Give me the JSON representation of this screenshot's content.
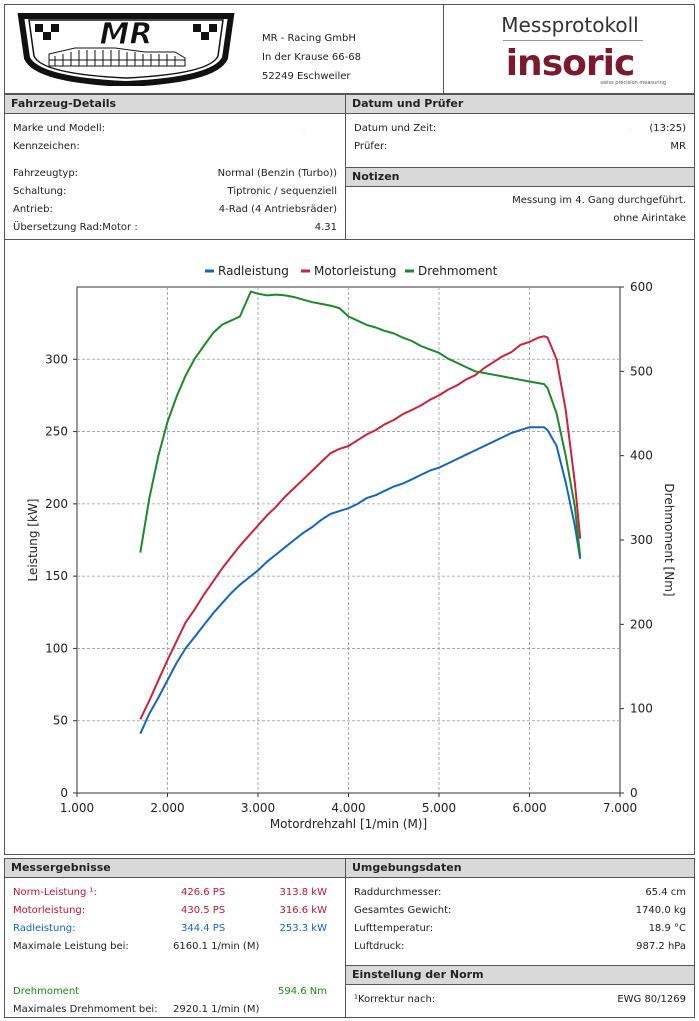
{
  "header": {
    "address_lines": [
      "MR - Racing GmbH",
      "In der Krause 66-68",
      "52249 Eschweiler"
    ],
    "doc_title": "Messprotokoll",
    "brand": "insoric",
    "brand_o": "o",
    "brand_tagline": "swiss precision measuring",
    "logo_text": "MR"
  },
  "vehicle": {
    "title": "Fahrzeug-Details",
    "make_label": "Marke und Modell:",
    "make_value": ".",
    "plate_label": "Kennzeichen:",
    "rows": [
      {
        "label": "Fahrzeugtyp:",
        "value": "Normal (Benzin (Turbo))"
      },
      {
        "label": "Schaltung:",
        "value": "Tiptronic / sequenziell"
      },
      {
        "label": "Antrieb:",
        "value": "4-Rad (4 Antriebsräder)"
      },
      {
        "label": "Übersetzung Rad:Motor :",
        "value": "4.31"
      }
    ]
  },
  "date": {
    "title": "Datum und Prüfer",
    "datetime_label": "Datum und Zeit:",
    "datetime_dot": ".",
    "datetime_value": "(13:25)",
    "tester_label": "Prüfer:",
    "tester_value": "MR"
  },
  "notes": {
    "title": "Notizen",
    "lines": [
      "Messung im 4. Gang durchgeführt.",
      "ohne Airintake"
    ]
  },
  "chart_data": {
    "type": "line",
    "legend": [
      "Radleistung",
      "Motorleistung",
      "Drehmoment"
    ],
    "legend_position": "top",
    "colors": [
      "#1464c8",
      "#d0203a",
      "#1a8a2a"
    ],
    "xlabel": "Motordrehzahl [1/min (M)]",
    "ylabel": "Leistung [kW]",
    "y2label": "Drehmoment [Nm]",
    "xlim": [
      1000,
      7000
    ],
    "ylim": [
      0,
      350
    ],
    "y2lim": [
      0,
      600
    ],
    "xticks": [
      "1.000",
      "2.000",
      "3.000",
      "4.000",
      "5.000",
      "6.000",
      "7.000"
    ],
    "yticks": [
      "0",
      "50",
      "100",
      "150",
      "200",
      "250",
      "300"
    ],
    "y2ticks": [
      "0",
      "100",
      "200",
      "300",
      "400",
      "500",
      "600"
    ],
    "grid": true,
    "series": [
      {
        "name": "Radleistung",
        "axis": "left",
        "x": [
          1700,
          1800,
          1900,
          2000,
          2100,
          2200,
          2300,
          2400,
          2500,
          2600,
          2700,
          2800,
          2900,
          3000,
          3100,
          3200,
          3300,
          3400,
          3500,
          3600,
          3700,
          3800,
          3900,
          4000,
          4100,
          4200,
          4300,
          4400,
          4500,
          4600,
          4700,
          4800,
          4900,
          5000,
          5100,
          5200,
          5300,
          5400,
          5500,
          5600,
          5700,
          5800,
          5900,
          6000,
          6100,
          6160,
          6200,
          6300,
          6400,
          6500,
          6560
        ],
        "values": [
          41,
          55,
          66,
          78,
          90,
          100,
          108,
          116,
          124,
          131,
          138,
          144,
          149,
          154,
          160,
          165,
          170,
          175,
          180,
          184,
          189,
          193,
          195,
          197,
          200,
          204,
          206,
          209,
          212,
          214,
          217,
          220,
          223,
          225,
          228,
          231,
          234,
          237,
          240,
          243,
          246,
          249,
          251,
          253,
          253,
          253,
          251,
          240,
          215,
          185,
          162
        ]
      },
      {
        "name": "Motorleistung",
        "axis": "left",
        "x": [
          1700,
          1800,
          1900,
          2000,
          2100,
          2200,
          2300,
          2400,
          2500,
          2600,
          2700,
          2800,
          2900,
          3000,
          3100,
          3200,
          3300,
          3400,
          3500,
          3600,
          3700,
          3800,
          3900,
          4000,
          4100,
          4200,
          4300,
          4400,
          4500,
          4600,
          4700,
          4800,
          4900,
          5000,
          5100,
          5200,
          5300,
          5400,
          5500,
          5600,
          5700,
          5800,
          5900,
          6000,
          6100,
          6160,
          6200,
          6300,
          6400,
          6500,
          6560
        ],
        "values": [
          51,
          64,
          78,
          92,
          105,
          118,
          127,
          137,
          146,
          155,
          163,
          171,
          178,
          185,
          192,
          198,
          205,
          211,
          217,
          223,
          229,
          235,
          238,
          240,
          244,
          248,
          251,
          255,
          258,
          262,
          265,
          268,
          272,
          275,
          279,
          282,
          286,
          289,
          294,
          298,
          302,
          305,
          310,
          312,
          315,
          316,
          315,
          300,
          265,
          215,
          176
        ]
      },
      {
        "name": "Drehmoment",
        "axis": "right",
        "x": [
          1700,
          1800,
          1900,
          2000,
          2100,
          2200,
          2300,
          2400,
          2500,
          2600,
          2700,
          2800,
          2920,
          3000,
          3100,
          3200,
          3300,
          3400,
          3500,
          3600,
          3700,
          3800,
          3900,
          4000,
          4100,
          4200,
          4300,
          4400,
          4500,
          4600,
          4700,
          4800,
          4900,
          5000,
          5100,
          5200,
          5300,
          5400,
          5500,
          5600,
          5700,
          5800,
          5900,
          6000,
          6100,
          6160,
          6200,
          6300,
          6400,
          6500,
          6560
        ],
        "values": [
          285,
          350,
          400,
          440,
          470,
          495,
          515,
          530,
          545,
          555,
          560,
          565,
          594.6,
          592,
          590,
          591,
          590,
          588,
          585,
          582,
          580,
          578,
          575,
          565,
          560,
          555,
          552,
          548,
          545,
          540,
          536,
          530,
          526,
          522,
          515,
          510,
          505,
          500,
          498,
          496,
          494,
          492,
          490,
          488,
          486,
          485,
          480,
          450,
          400,
          340,
          280
        ]
      }
    ]
  },
  "results": {
    "title": "Messergebnisse",
    "rows": [
      {
        "label": "Norm-Leistung ¹:",
        "ps": "426.6 PS",
        "kw": "313.8 kW",
        "color": "#c8102e"
      },
      {
        "label": "Motorleistung:",
        "ps": "430.5 PS",
        "kw": "316.6 kW",
        "color": "#c8102e"
      },
      {
        "label": "Radleistung:",
        "ps": "344.4 PS",
        "kw": "253.3 kW",
        "color": "#1464c8"
      }
    ],
    "max_power_label": "Maximale Leistung bei:",
    "max_power_value": "6160.1 1/min (M)",
    "torque_label": "Drehmoment",
    "torque_value": "594.6 Nm",
    "max_torque_label": "Maximales Drehmoment bei:",
    "max_torque_value": "2920.1 1/min (M)"
  },
  "environment": {
    "title": "Umgebungsdaten",
    "rows": [
      {
        "label": "Raddurchmesser:",
        "value": "65.4 cm"
      },
      {
        "label": "Gesamtes Gewicht:",
        "value": "1740.0 kg"
      },
      {
        "label": "Lufttemperatur:",
        "value": "18.9 °C"
      },
      {
        "label": "Luftdruck:",
        "value": "987.2 hPa"
      }
    ]
  },
  "norm": {
    "title": "Einstellung der Norm",
    "label": "¹Korrektur nach:",
    "value": "EWG 80/1269"
  }
}
